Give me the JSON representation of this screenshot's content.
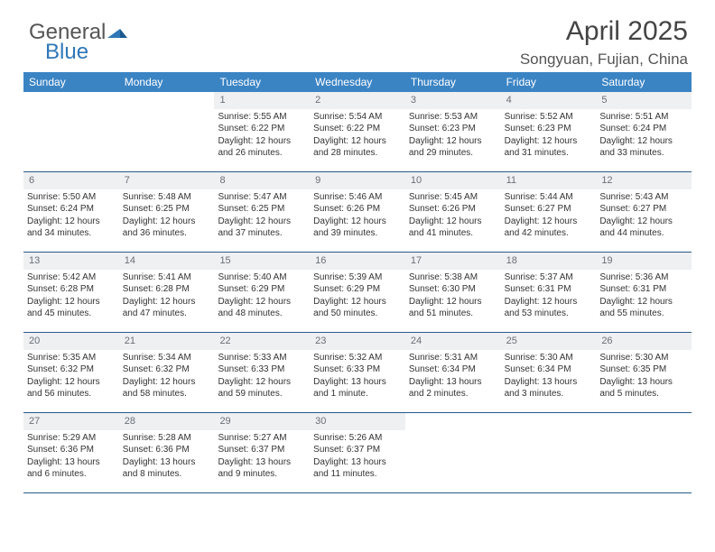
{
  "branding": {
    "logo_general": "General",
    "logo_blue": "Blue",
    "logo_gray_color": "#666666",
    "logo_blue_color": "#2f77b8"
  },
  "header": {
    "month_title": "April 2025",
    "location": "Songyuan, Fujian, China"
  },
  "styling": {
    "header_bg": "#3b84c4",
    "header_text": "#ffffff",
    "daynum_bg": "#eef0f2",
    "daynum_text": "#6a6f76",
    "row_border": "#2a5a8a",
    "body_text": "#333333",
    "content_fontsize": 10,
    "header_fontsize": 12,
    "title_fontsize": 30,
    "location_fontsize": 17
  },
  "weekdays": [
    "Sunday",
    "Monday",
    "Tuesday",
    "Wednesday",
    "Thursday",
    "Friday",
    "Saturday"
  ],
  "weeks": [
    [
      {
        "blank": true
      },
      {
        "blank": true
      },
      {
        "day": "1",
        "sunrise": "Sunrise: 5:55 AM",
        "sunset": "Sunset: 6:22 PM",
        "daylight": "Daylight: 12 hours and 26 minutes."
      },
      {
        "day": "2",
        "sunrise": "Sunrise: 5:54 AM",
        "sunset": "Sunset: 6:22 PM",
        "daylight": "Daylight: 12 hours and 28 minutes."
      },
      {
        "day": "3",
        "sunrise": "Sunrise: 5:53 AM",
        "sunset": "Sunset: 6:23 PM",
        "daylight": "Daylight: 12 hours and 29 minutes."
      },
      {
        "day": "4",
        "sunrise": "Sunrise: 5:52 AM",
        "sunset": "Sunset: 6:23 PM",
        "daylight": "Daylight: 12 hours and 31 minutes."
      },
      {
        "day": "5",
        "sunrise": "Sunrise: 5:51 AM",
        "sunset": "Sunset: 6:24 PM",
        "daylight": "Daylight: 12 hours and 33 minutes."
      }
    ],
    [
      {
        "day": "6",
        "sunrise": "Sunrise: 5:50 AM",
        "sunset": "Sunset: 6:24 PM",
        "daylight": "Daylight: 12 hours and 34 minutes."
      },
      {
        "day": "7",
        "sunrise": "Sunrise: 5:48 AM",
        "sunset": "Sunset: 6:25 PM",
        "daylight": "Daylight: 12 hours and 36 minutes."
      },
      {
        "day": "8",
        "sunrise": "Sunrise: 5:47 AM",
        "sunset": "Sunset: 6:25 PM",
        "daylight": "Daylight: 12 hours and 37 minutes."
      },
      {
        "day": "9",
        "sunrise": "Sunrise: 5:46 AM",
        "sunset": "Sunset: 6:26 PM",
        "daylight": "Daylight: 12 hours and 39 minutes."
      },
      {
        "day": "10",
        "sunrise": "Sunrise: 5:45 AM",
        "sunset": "Sunset: 6:26 PM",
        "daylight": "Daylight: 12 hours and 41 minutes."
      },
      {
        "day": "11",
        "sunrise": "Sunrise: 5:44 AM",
        "sunset": "Sunset: 6:27 PM",
        "daylight": "Daylight: 12 hours and 42 minutes."
      },
      {
        "day": "12",
        "sunrise": "Sunrise: 5:43 AM",
        "sunset": "Sunset: 6:27 PM",
        "daylight": "Daylight: 12 hours and 44 minutes."
      }
    ],
    [
      {
        "day": "13",
        "sunrise": "Sunrise: 5:42 AM",
        "sunset": "Sunset: 6:28 PM",
        "daylight": "Daylight: 12 hours and 45 minutes."
      },
      {
        "day": "14",
        "sunrise": "Sunrise: 5:41 AM",
        "sunset": "Sunset: 6:28 PM",
        "daylight": "Daylight: 12 hours and 47 minutes."
      },
      {
        "day": "15",
        "sunrise": "Sunrise: 5:40 AM",
        "sunset": "Sunset: 6:29 PM",
        "daylight": "Daylight: 12 hours and 48 minutes."
      },
      {
        "day": "16",
        "sunrise": "Sunrise: 5:39 AM",
        "sunset": "Sunset: 6:29 PM",
        "daylight": "Daylight: 12 hours and 50 minutes."
      },
      {
        "day": "17",
        "sunrise": "Sunrise: 5:38 AM",
        "sunset": "Sunset: 6:30 PM",
        "daylight": "Daylight: 12 hours and 51 minutes."
      },
      {
        "day": "18",
        "sunrise": "Sunrise: 5:37 AM",
        "sunset": "Sunset: 6:31 PM",
        "daylight": "Daylight: 12 hours and 53 minutes."
      },
      {
        "day": "19",
        "sunrise": "Sunrise: 5:36 AM",
        "sunset": "Sunset: 6:31 PM",
        "daylight": "Daylight: 12 hours and 55 minutes."
      }
    ],
    [
      {
        "day": "20",
        "sunrise": "Sunrise: 5:35 AM",
        "sunset": "Sunset: 6:32 PM",
        "daylight": "Daylight: 12 hours and 56 minutes."
      },
      {
        "day": "21",
        "sunrise": "Sunrise: 5:34 AM",
        "sunset": "Sunset: 6:32 PM",
        "daylight": "Daylight: 12 hours and 58 minutes."
      },
      {
        "day": "22",
        "sunrise": "Sunrise: 5:33 AM",
        "sunset": "Sunset: 6:33 PM",
        "daylight": "Daylight: 12 hours and 59 minutes."
      },
      {
        "day": "23",
        "sunrise": "Sunrise: 5:32 AM",
        "sunset": "Sunset: 6:33 PM",
        "daylight": "Daylight: 13 hours and 1 minute."
      },
      {
        "day": "24",
        "sunrise": "Sunrise: 5:31 AM",
        "sunset": "Sunset: 6:34 PM",
        "daylight": "Daylight: 13 hours and 2 minutes."
      },
      {
        "day": "25",
        "sunrise": "Sunrise: 5:30 AM",
        "sunset": "Sunset: 6:34 PM",
        "daylight": "Daylight: 13 hours and 3 minutes."
      },
      {
        "day": "26",
        "sunrise": "Sunrise: 5:30 AM",
        "sunset": "Sunset: 6:35 PM",
        "daylight": "Daylight: 13 hours and 5 minutes."
      }
    ],
    [
      {
        "day": "27",
        "sunrise": "Sunrise: 5:29 AM",
        "sunset": "Sunset: 6:36 PM",
        "daylight": "Daylight: 13 hours and 6 minutes."
      },
      {
        "day": "28",
        "sunrise": "Sunrise: 5:28 AM",
        "sunset": "Sunset: 6:36 PM",
        "daylight": "Daylight: 13 hours and 8 minutes."
      },
      {
        "day": "29",
        "sunrise": "Sunrise: 5:27 AM",
        "sunset": "Sunset: 6:37 PM",
        "daylight": "Daylight: 13 hours and 9 minutes."
      },
      {
        "day": "30",
        "sunrise": "Sunrise: 5:26 AM",
        "sunset": "Sunset: 6:37 PM",
        "daylight": "Daylight: 13 hours and 11 minutes."
      },
      {
        "blank": true
      },
      {
        "blank": true
      },
      {
        "blank": true
      }
    ]
  ]
}
